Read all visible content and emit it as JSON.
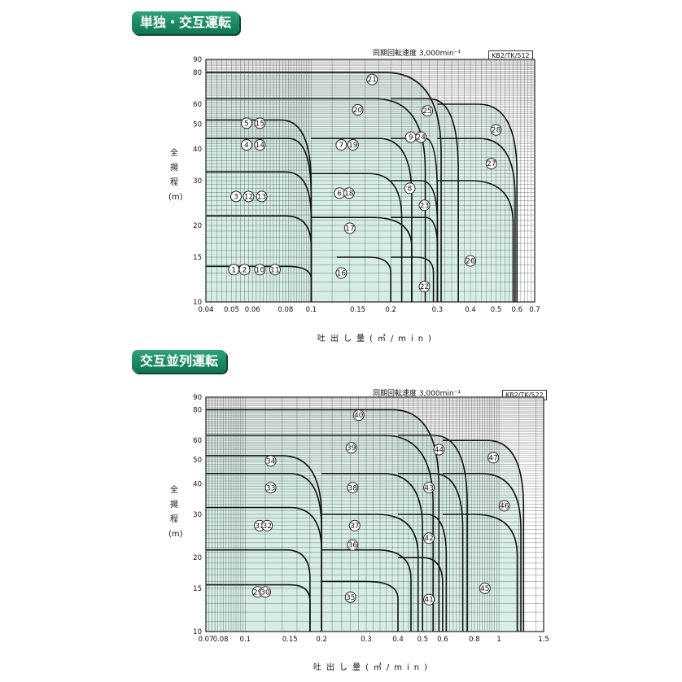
{
  "charts": [
    {
      "badge": "単独・交互運転",
      "speed_note": "同期回転速度 3,000min⁻¹",
      "code": "KB2/TK/512",
      "ylabel": "全揚程(m)",
      "xlabel": "吐出し量(㎥/min)"
    },
    {
      "badge": "交互並列運転",
      "speed_note": "同期回転速度 3,000min⁻¹",
      "code": "KB2/TK/522",
      "ylabel": "全揚程(m)",
      "xlabel": "吐出し量(㎥/min)"
    }
  ],
  "colors": {
    "fill": "#d6ece3",
    "line": "#111111",
    "grid": "#222222",
    "badge": "#178a63"
  },
  "chart_data": [
    {
      "type": "area",
      "xscale": "log",
      "yscale": "log",
      "xlim": [
        0.04,
        0.7
      ],
      "ylim": [
        10,
        90
      ],
      "xticks": [
        0.04,
        0.05,
        0.06,
        0.08,
        0.1,
        0.15,
        0.2,
        0.3,
        0.4,
        0.5,
        0.6,
        0.7
      ],
      "xtick_labels": [
        "0.04",
        "0.05",
        "0.06",
        "0.08",
        "0.1",
        "0.15",
        "0.2",
        "0.3",
        "0.4",
        "0.5",
        "0.6",
        "0.7"
      ],
      "yticks": [
        10,
        15,
        20,
        30,
        40,
        50,
        60,
        80,
        90
      ],
      "ytick_labels": [
        "10",
        "15",
        "20",
        "30",
        "40",
        "50",
        "60",
        "80",
        "90"
      ],
      "models": [
        {
          "label": "1",
          "x": 0.051,
          "y": 13.4
        },
        {
          "label": "2",
          "x": 0.056,
          "y": 13.4
        },
        {
          "label": "10",
          "x": 0.064,
          "y": 13.4
        },
        {
          "label": "11",
          "x": 0.073,
          "y": 13.4
        },
        {
          "label": "3",
          "x": 0.052,
          "y": 26
        },
        {
          "label": "12",
          "x": 0.058,
          "y": 26
        },
        {
          "label": "13",
          "x": 0.065,
          "y": 26
        },
        {
          "label": "4",
          "x": 0.057,
          "y": 41.5
        },
        {
          "label": "14",
          "x": 0.064,
          "y": 41.5
        },
        {
          "label": "5",
          "x": 0.057,
          "y": 50.5
        },
        {
          "label": "15",
          "x": 0.064,
          "y": 50.5
        },
        {
          "label": "6",
          "x": 0.128,
          "y": 26.8
        },
        {
          "label": "18",
          "x": 0.139,
          "y": 26.8
        },
        {
          "label": "7",
          "x": 0.13,
          "y": 41.5
        },
        {
          "label": "19",
          "x": 0.144,
          "y": 41.5
        },
        {
          "label": "16",
          "x": 0.13,
          "y": 13
        },
        {
          "label": "17",
          "x": 0.14,
          "y": 19.5
        },
        {
          "label": "20",
          "x": 0.15,
          "y": 57
        },
        {
          "label": "21",
          "x": 0.17,
          "y": 75
        },
        {
          "label": "8",
          "x": 0.236,
          "y": 28
        },
        {
          "label": "9",
          "x": 0.238,
          "y": 44.5
        },
        {
          "label": "24",
          "x": 0.26,
          "y": 44.5
        },
        {
          "label": "23",
          "x": 0.268,
          "y": 24
        },
        {
          "label": "25",
          "x": 0.275,
          "y": 56.5
        },
        {
          "label": "22",
          "x": 0.268,
          "y": 11.5
        },
        {
          "label": "26",
          "x": 0.4,
          "y": 14.5
        },
        {
          "label": "27",
          "x": 0.48,
          "y": 35
        },
        {
          "label": "28",
          "x": 0.5,
          "y": 47.5
        }
      ],
      "envelopes": [
        {
          "q0": 0.04,
          "q1": 0.081,
          "q2": 0.1,
          "h": 13.8,
          "hmin": 10
        },
        {
          "q0": 0.04,
          "q1": 0.08,
          "q2": 0.1,
          "h": 21.8,
          "hmin": 10
        },
        {
          "q0": 0.04,
          "q1": 0.08,
          "q2": 0.1,
          "h": 32.5,
          "hmin": 10
        },
        {
          "q0": 0.04,
          "q1": 0.082,
          "q2": 0.1,
          "h": 44,
          "hmin": 10
        },
        {
          "q0": 0.04,
          "q1": 0.077,
          "q2": 0.1,
          "h": 52,
          "hmin": 10
        },
        {
          "q0": 0.125,
          "q1": 0.165,
          "q2": 0.2,
          "h": 15,
          "hmin": 10
        },
        {
          "q0": 0.1,
          "q1": 0.17,
          "q2": 0.24,
          "h": 21.5,
          "hmin": 10
        },
        {
          "q0": 0.1,
          "q1": 0.165,
          "q2": 0.22,
          "h": 32,
          "hmin": 10
        },
        {
          "q0": 0.1,
          "q1": 0.18,
          "q2": 0.24,
          "h": 44,
          "hmin": 10
        },
        {
          "q0": 0.04,
          "q1": 0.175,
          "q2": 0.27,
          "h": 63,
          "hmin": 10
        },
        {
          "q0": 0.04,
          "q1": 0.19,
          "q2": 0.31,
          "h": 80,
          "hmin": 10
        },
        {
          "q0": 0.2,
          "q1": 0.25,
          "q2": 0.29,
          "h": 15,
          "hmin": 10
        },
        {
          "q0": 0.2,
          "q1": 0.27,
          "q2": 0.3,
          "h": 21.5,
          "hmin": 10
        },
        {
          "q0": 0.2,
          "q1": 0.26,
          "q2": 0.3,
          "h": 30,
          "hmin": 10
        },
        {
          "q0": 0.2,
          "q1": 0.27,
          "q2": 0.3,
          "h": 44,
          "hmin": 10
        },
        {
          "q0": 0.2,
          "q1": 0.28,
          "q2": 0.36,
          "h": 63,
          "hmin": 10
        },
        {
          "q0": 0.3,
          "q1": 0.4,
          "q2": 0.58,
          "h": 30,
          "hmin": 10
        },
        {
          "q0": 0.3,
          "q1": 0.43,
          "q2": 0.59,
          "h": 44,
          "hmin": 10
        },
        {
          "q0": 0.3,
          "q1": 0.43,
          "q2": 0.6,
          "h": 60,
          "hmin": 10
        }
      ]
    },
    {
      "type": "area",
      "xscale": "log",
      "yscale": "log",
      "xlim": [
        0.07,
        1.5
      ],
      "ylim": [
        10,
        90
      ],
      "xticks": [
        0.07,
        0.08,
        0.1,
        0.15,
        0.2,
        0.3,
        0.4,
        0.5,
        0.6,
        0.8,
        1,
        1.5
      ],
      "xtick_labels": [
        "0.07",
        "0.08",
        "0.1",
        "0.15",
        "0.2",
        "0.3",
        "0.4",
        "0.5",
        "0.6",
        "0.8",
        "1",
        "1.5"
      ],
      "yticks": [
        10,
        15,
        20,
        30,
        40,
        50,
        60,
        80,
        90
      ],
      "ytick_labels": [
        "10",
        "15",
        "20",
        "30",
        "40",
        "50",
        "60",
        "80",
        "90"
      ],
      "models": [
        {
          "label": "29",
          "x": 0.112,
          "y": 14.5
        },
        {
          "label": "30",
          "x": 0.12,
          "y": 14.5
        },
        {
          "label": "31",
          "x": 0.114,
          "y": 27
        },
        {
          "label": "32",
          "x": 0.122,
          "y": 27
        },
        {
          "label": "33",
          "x": 0.126,
          "y": 38.5
        },
        {
          "label": "34",
          "x": 0.126,
          "y": 49.5
        },
        {
          "label": "35",
          "x": 0.26,
          "y": 13.8
        },
        {
          "label": "36",
          "x": 0.265,
          "y": 22.5
        },
        {
          "label": "37",
          "x": 0.27,
          "y": 27
        },
        {
          "label": "38",
          "x": 0.265,
          "y": 38.5
        },
        {
          "label": "39",
          "x": 0.262,
          "y": 56
        },
        {
          "label": "40",
          "x": 0.28,
          "y": 76
        },
        {
          "label": "41",
          "x": 0.53,
          "y": 13.5
        },
        {
          "label": "42",
          "x": 0.53,
          "y": 24
        },
        {
          "label": "43",
          "x": 0.53,
          "y": 38.5
        },
        {
          "label": "44",
          "x": 0.58,
          "y": 55
        },
        {
          "label": "45",
          "x": 0.88,
          "y": 15
        },
        {
          "label": "46",
          "x": 1.05,
          "y": 32.5
        },
        {
          "label": "47",
          "x": 0.95,
          "y": 51
        }
      ],
      "envelopes": [
        {
          "q0": 0.07,
          "q1": 0.15,
          "q2": 0.18,
          "h": 15.5,
          "hmin": 10
        },
        {
          "q0": 0.07,
          "q1": 0.145,
          "q2": 0.18,
          "h": 21.5,
          "hmin": 10
        },
        {
          "q0": 0.07,
          "q1": 0.15,
          "q2": 0.2,
          "h": 32,
          "hmin": 10
        },
        {
          "q0": 0.07,
          "q1": 0.15,
          "q2": 0.2,
          "h": 44,
          "hmin": 10
        },
        {
          "q0": 0.07,
          "q1": 0.14,
          "q2": 0.2,
          "h": 52,
          "hmin": 10
        },
        {
          "q0": 0.2,
          "q1": 0.3,
          "q2": 0.4,
          "h": 16,
          "hmin": 10
        },
        {
          "q0": 0.2,
          "q1": 0.33,
          "q2": 0.45,
          "h": 21.5,
          "hmin": 10
        },
        {
          "q0": 0.2,
          "q1": 0.33,
          "q2": 0.48,
          "h": 30,
          "hmin": 10
        },
        {
          "q0": 0.2,
          "q1": 0.35,
          "q2": 0.5,
          "h": 44,
          "hmin": 10
        },
        {
          "q0": 0.07,
          "q1": 0.35,
          "q2": 0.55,
          "h": 63,
          "hmin": 10
        },
        {
          "q0": 0.07,
          "q1": 0.38,
          "q2": 0.58,
          "h": 80,
          "hmin": 10
        },
        {
          "q0": 0.4,
          "q1": 0.5,
          "q2": 0.6,
          "h": 20,
          "hmin": 10
        },
        {
          "q0": 0.4,
          "q1": 0.52,
          "q2": 0.62,
          "h": 30,
          "hmin": 10
        },
        {
          "q0": 0.4,
          "q1": 0.55,
          "q2": 0.72,
          "h": 44,
          "hmin": 10
        },
        {
          "q0": 0.4,
          "q1": 0.55,
          "q2": 0.75,
          "h": 63,
          "hmin": 10
        },
        {
          "q0": 0.6,
          "q1": 0.8,
          "q2": 1.18,
          "h": 30,
          "hmin": 10
        },
        {
          "q0": 0.6,
          "q1": 0.85,
          "q2": 1.22,
          "h": 44,
          "hmin": 10
        },
        {
          "q0": 0.6,
          "q1": 0.9,
          "q2": 1.25,
          "h": 60,
          "hmin": 10
        }
      ]
    }
  ]
}
